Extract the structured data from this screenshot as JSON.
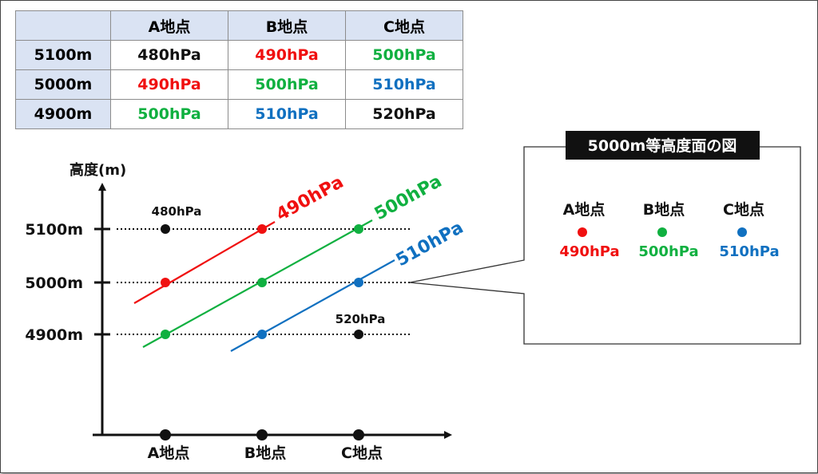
{
  "colors": {
    "red": "#f01010",
    "green": "#10b040",
    "blue": "#1070c0",
    "black": "#111111",
    "header_bg": "#dae3f3"
  },
  "table": {
    "headers": [
      "",
      "A地点",
      "B地点",
      "C地点"
    ],
    "rows": [
      {
        "label": "5100m",
        "cells": [
          {
            "text": "480hPa",
            "color": "black"
          },
          {
            "text": "490hPa",
            "color": "red"
          },
          {
            "text": "500hPa",
            "color": "green"
          }
        ]
      },
      {
        "label": "5000m",
        "cells": [
          {
            "text": "490hPa",
            "color": "red"
          },
          {
            "text": "500hPa",
            "color": "green"
          },
          {
            "text": "510hPa",
            "color": "blue"
          }
        ]
      },
      {
        "label": "4900m",
        "cells": [
          {
            "text": "500hPa",
            "color": "green"
          },
          {
            "text": "510hPa",
            "color": "blue"
          },
          {
            "text": "520hPa",
            "color": "black"
          }
        ]
      }
    ]
  },
  "diagram": {
    "y_axis_title": "高度(m)",
    "levels": [
      "5100m",
      "5000m",
      "4900m"
    ],
    "points": [
      "A地点",
      "B地点",
      "C地点"
    ],
    "line_labels": [
      {
        "text": "490hPa",
        "color": "red"
      },
      {
        "text": "500hPa",
        "color": "green"
      },
      {
        "text": "510hPa",
        "color": "blue"
      }
    ],
    "dot_labels": [
      "480hPa",
      "520hPa"
    ]
  },
  "callout": {
    "title": "5000m等高度面の図",
    "items": [
      {
        "point": "A地点",
        "value": "490hPa",
        "color": "red"
      },
      {
        "point": "B地点",
        "value": "500hPa",
        "color": "green"
      },
      {
        "point": "C地点",
        "value": "510hPa",
        "color": "blue"
      }
    ]
  }
}
